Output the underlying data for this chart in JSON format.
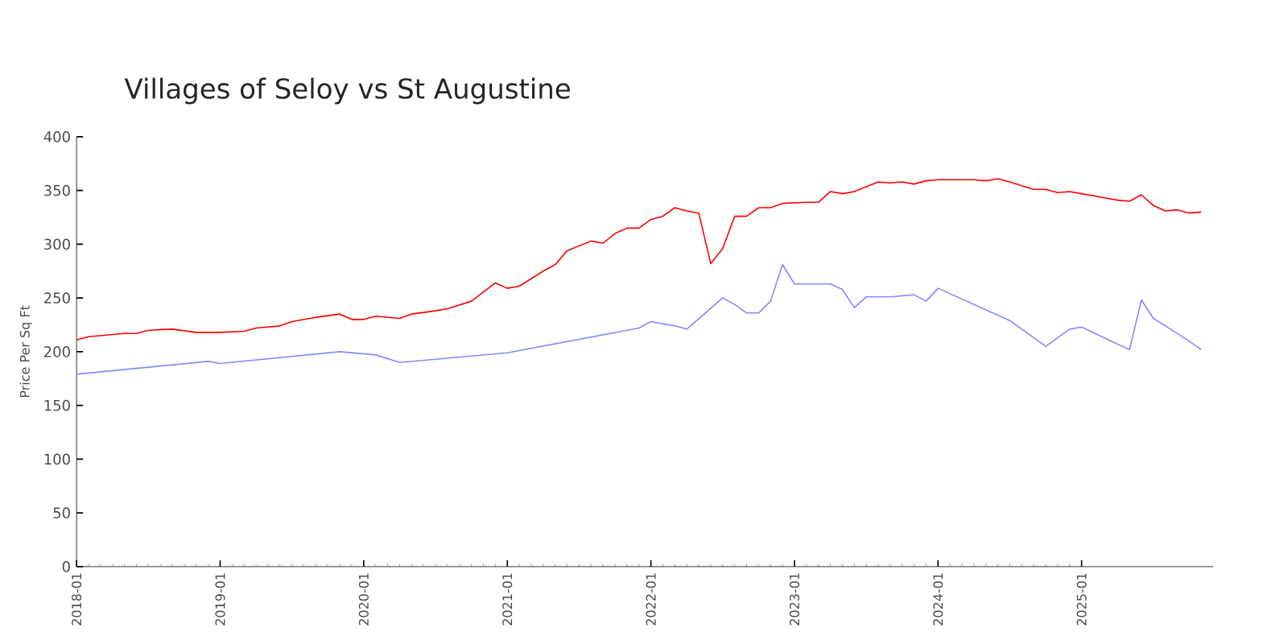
{
  "chart_data": {
    "type": "line",
    "title": "Villages of Seloy vs St Augustine",
    "ylabel": "Price Per Sq Ft",
    "x": [
      "2018-01",
      "2018-02",
      "2018-05",
      "2018-06",
      "2018-07",
      "2018-09",
      "2018-11",
      "2019-01",
      "2019-03",
      "2019-04",
      "2019-06",
      "2019-07",
      "2019-09",
      "2019-11",
      "2019-12",
      "2020-01",
      "2020-02",
      "2020-04",
      "2020-05",
      "2020-07",
      "2020-08",
      "2020-10",
      "2020-12",
      "2021-01",
      "2021-02",
      "2021-04",
      "2021-05",
      "2021-06",
      "2021-08",
      "2021-09",
      "2021-10",
      "2021-11",
      "2021-12",
      "2022-01",
      "2022-02",
      "2022-03",
      "2022-04",
      "2022-05",
      "2022-06",
      "2022-07",
      "2022-08",
      "2022-09",
      "2022-10",
      "2022-11",
      "2022-12",
      "2023-02",
      "2023-03",
      "2023-04",
      "2023-05",
      "2023-06",
      "2023-08",
      "2023-09",
      "2023-10",
      "2023-11",
      "2023-12",
      "2024-01",
      "2024-04",
      "2024-05",
      "2024-06",
      "2024-07",
      "2024-09",
      "2024-10",
      "2024-11",
      "2024-12",
      "2025-01",
      "2025-03",
      "2025-04",
      "2025-05",
      "2025-06",
      "2025-07",
      "2025-08",
      "2025-09",
      "2025-10",
      "2025-11"
    ],
    "series": [
      {
        "color": "#ff0000",
        "values": [
          211,
          214,
          217,
          217,
          220,
          221,
          218,
          218,
          219,
          222,
          224,
          228,
          232,
          235,
          230,
          230,
          233,
          231,
          235,
          238,
          240,
          247,
          264,
          259,
          261,
          275,
          281,
          294,
          303,
          301,
          310,
          315,
          315,
          323,
          326,
          334,
          331,
          329,
          282,
          296,
          326,
          326,
          334,
          334,
          338,
          339,
          339,
          349,
          347,
          349,
          358,
          357,
          358,
          356,
          359,
          360,
          360,
          359,
          361,
          358,
          351,
          351,
          348,
          349,
          347,
          343,
          341,
          340,
          346,
          336,
          331,
          332,
          329,
          330
        ]
      },
      {
        "color": "#8888ff",
        "x": [
          "2018-01",
          "2018-12",
          "2019-01",
          "2019-11",
          "2020-02",
          "2020-04",
          "2021-01",
          "2021-12",
          "2022-01",
          "2022-03",
          "2022-04",
          "2022-07",
          "2022-08",
          "2022-09",
          "2022-10",
          "2022-11",
          "2022-12",
          "2023-01",
          "2023-04",
          "2023-05",
          "2023-06",
          "2023-07",
          "2023-09",
          "2023-11",
          "2023-12",
          "2024-01",
          "2024-07",
          "2024-10",
          "2024-12",
          "2025-01",
          "2025-04",
          "2025-05",
          "2025-06",
          "2025-07",
          "2025-09",
          "2025-11"
        ],
        "values": [
          179,
          191,
          189,
          200,
          197,
          190,
          199,
          222,
          228,
          224,
          221,
          250,
          244,
          236,
          236,
          247,
          281,
          263,
          263,
          258,
          241,
          251,
          251,
          253,
          247,
          259,
          229,
          205,
          221,
          223,
          207,
          202,
          248,
          231,
          217,
          202
        ]
      }
    ],
    "xlim": [
      "2018-01",
      "2025-12"
    ],
    "xticks": [
      "2018-01",
      "2019-01",
      "2020-01",
      "2021-01",
      "2022-01",
      "2023-01",
      "2024-01",
      "2025-01"
    ],
    "ylim": [
      0,
      400
    ],
    "yticks": [
      0,
      50,
      100,
      150,
      200,
      250,
      300,
      350,
      400
    ],
    "grid": false,
    "marker": "none",
    "line_style": "solid"
  }
}
